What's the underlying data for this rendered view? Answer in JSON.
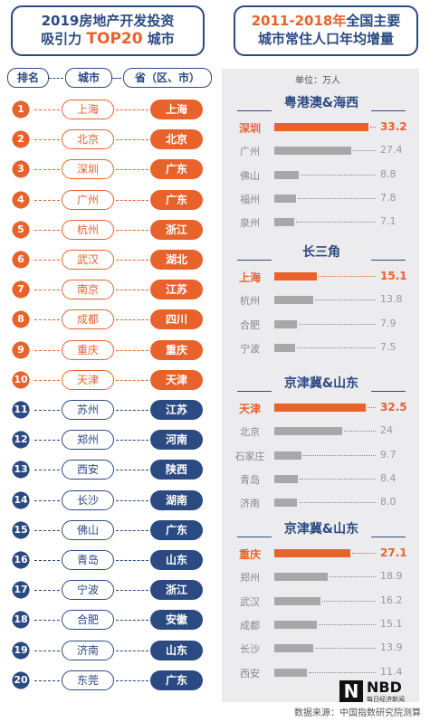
{
  "header_left": {
    "line1": "2019房地产开发投资",
    "line2_prefix": "吸引力 ",
    "line2_highlight": "TOP20",
    "line2_suffix": " 城市"
  },
  "header_right": {
    "line1_highlight": "2011-2018年",
    "line1_suffix": "全国主要",
    "line2": "城市常住人口年均增量"
  },
  "columns": {
    "rank": "排名",
    "city": "城市",
    "province": "省（区、市）"
  },
  "colors": {
    "navy": "#2c4a82",
    "orange": "#e8622c",
    "gray_bar": "#a8a8a8",
    "panel": "#ececef"
  },
  "ranking": [
    {
      "rank": "1",
      "city": "上海",
      "province": "上海",
      "group": "orange"
    },
    {
      "rank": "2",
      "city": "北京",
      "province": "北京",
      "group": "orange"
    },
    {
      "rank": "3",
      "city": "深圳",
      "province": "广东",
      "group": "orange"
    },
    {
      "rank": "4",
      "city": "广州",
      "province": "广东",
      "group": "orange"
    },
    {
      "rank": "5",
      "city": "杭州",
      "province": "浙江",
      "group": "orange"
    },
    {
      "rank": "6",
      "city": "武汉",
      "province": "湖北",
      "group": "orange"
    },
    {
      "rank": "7",
      "city": "南京",
      "province": "江苏",
      "group": "orange"
    },
    {
      "rank": "8",
      "city": "成都",
      "province": "四川",
      "group": "orange"
    },
    {
      "rank": "9",
      "city": "重庆",
      "province": "重庆",
      "group": "orange"
    },
    {
      "rank": "10",
      "city": "天津",
      "province": "天津",
      "group": "orange"
    },
    {
      "rank": "11",
      "city": "苏州",
      "province": "江苏",
      "group": "navy"
    },
    {
      "rank": "12",
      "city": "郑州",
      "province": "河南",
      "group": "navy"
    },
    {
      "rank": "13",
      "city": "西安",
      "province": "陕西",
      "group": "navy"
    },
    {
      "rank": "14",
      "city": "长沙",
      "province": "湖南",
      "group": "navy"
    },
    {
      "rank": "15",
      "city": "佛山",
      "province": "广东",
      "group": "navy"
    },
    {
      "rank": "16",
      "city": "青岛",
      "province": "山东",
      "group": "navy"
    },
    {
      "rank": "17",
      "city": "宁波",
      "province": "浙江",
      "group": "navy"
    },
    {
      "rank": "18",
      "city": "合肥",
      "province": "安徽",
      "group": "navy"
    },
    {
      "rank": "19",
      "city": "济南",
      "province": "山东",
      "group": "navy"
    },
    {
      "rank": "20",
      "city": "东莞",
      "province": "广东",
      "group": "navy"
    }
  ],
  "unit_label": "单位：万人",
  "chart_data": {
    "type": "bar",
    "orientation": "horizontal",
    "unit": "万人",
    "groups": [
      {
        "name": "粤港澳&海西",
        "categories": [
          "深圳",
          "广州",
          "佛山",
          "福州",
          "泉州"
        ],
        "values": [
          33.2,
          27.4,
          8.8,
          7.8,
          7.1
        ],
        "value_labels": [
          "33.2",
          "27.4",
          "8.8",
          "7.8",
          "7.1"
        ]
      },
      {
        "name": "长三角",
        "categories": [
          "上海",
          "杭州",
          "合肥",
          "宁波"
        ],
        "values": [
          15.1,
          13.8,
          7.9,
          7.5
        ],
        "value_labels": [
          "15.1",
          "13.8",
          "7.9",
          "7.5"
        ]
      },
      {
        "name": "京津冀&山东",
        "categories": [
          "天津",
          "北京",
          "石家庄",
          "青岛",
          "济南"
        ],
        "values": [
          32.5,
          24,
          9.7,
          8.4,
          8.0
        ],
        "value_labels": [
          "32.5",
          "24",
          "9.7",
          "8.4",
          "8.0"
        ]
      },
      {
        "name": "京津冀&山东",
        "categories": [
          "重庆",
          "郑州",
          "武汉",
          "成都",
          "长沙",
          "西安"
        ],
        "values": [
          27.1,
          18.9,
          16.2,
          15.1,
          13.9,
          11.4
        ],
        "value_labels": [
          "27.1",
          "18.9",
          "16.2",
          "15.1",
          "13.9",
          "11.4"
        ]
      }
    ]
  },
  "source": "数据来源：中国指数研究院测算",
  "logo": {
    "mark": "N",
    "text": "NBD",
    "sub": "每日经济新闻"
  }
}
